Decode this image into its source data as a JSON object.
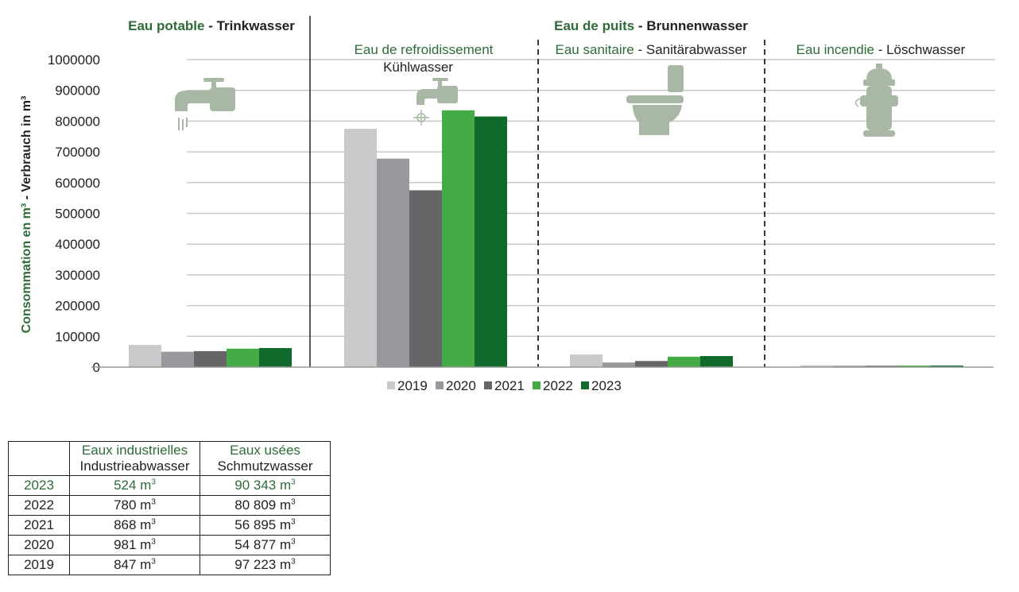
{
  "chart_data": {
    "type": "bar",
    "ylabel_fr": "Consommation en m³",
    "ylabel_sep": " - ",
    "ylabel_de": "Verbrauch in m³",
    "ylim": [
      0,
      1000000
    ],
    "yticks": [
      "0",
      "100000",
      "200000",
      "300000",
      "400000",
      "500000",
      "600000",
      "700000",
      "800000",
      "900000",
      "1000000"
    ],
    "grid": true,
    "legend_position": "bottom",
    "header": {
      "potable_fr": "Eau potable",
      "potable_de": "Trinkwasser",
      "puits_fr": "Eau de puits",
      "puits_de": "Brunnenwasser",
      "separator": " - "
    },
    "categories": [
      {
        "label_fr": "",
        "label_de": "",
        "icon": "faucet-icon"
      },
      {
        "label_fr": "Eau de refroidissement",
        "label_de": "Kühlwasser",
        "icon": "faucet-snowflake-icon"
      },
      {
        "label_fr": "Eau sanitaire",
        "label_de": "Sanitärabwasser",
        "icon": "toilet-icon"
      },
      {
        "label_fr": "Eau incendie",
        "label_de": "Löschwasser",
        "icon": "fire-hydrant-icon"
      }
    ],
    "series": [
      {
        "name": "2019",
        "color": "#c8c9cb",
        "values": [
          72000,
          775000,
          41000,
          6000
        ]
      },
      {
        "name": "2020",
        "color": "#98999c",
        "values": [
          50000,
          678000,
          15000,
          4500
        ]
      },
      {
        "name": "2021",
        "color": "#666668",
        "values": [
          52000,
          575000,
          20000,
          4500
        ]
      },
      {
        "name": "2022",
        "color": "#44ab45",
        "values": [
          60000,
          835000,
          34000,
          5000
        ]
      },
      {
        "name": "2023",
        "color": "#0f6a2b",
        "values": [
          62000,
          815000,
          36000,
          5000
        ]
      }
    ],
    "icon_color": "#a9b8a5"
  },
  "table": {
    "headers": [
      {
        "fr": "",
        "de": ""
      },
      {
        "fr": "Eaux industrielles",
        "de": "Industrieabwasser"
      },
      {
        "fr": "Eaux usées",
        "de": "Schmutzwasser"
      }
    ],
    "rows": [
      {
        "year": "2023",
        "industrial": "524 m",
        "waste": "90 343 m"
      },
      {
        "year": "2022",
        "industrial": "780 m",
        "waste": "80 809 m"
      },
      {
        "year": "2021",
        "industrial": "868 m",
        "waste": "56 895 m"
      },
      {
        "year": "2020",
        "industrial": "981 m",
        "waste": "54 877 m"
      },
      {
        "year": "2019",
        "industrial": "847 m",
        "waste": "97 223 m"
      }
    ],
    "unit_sup": "3"
  }
}
